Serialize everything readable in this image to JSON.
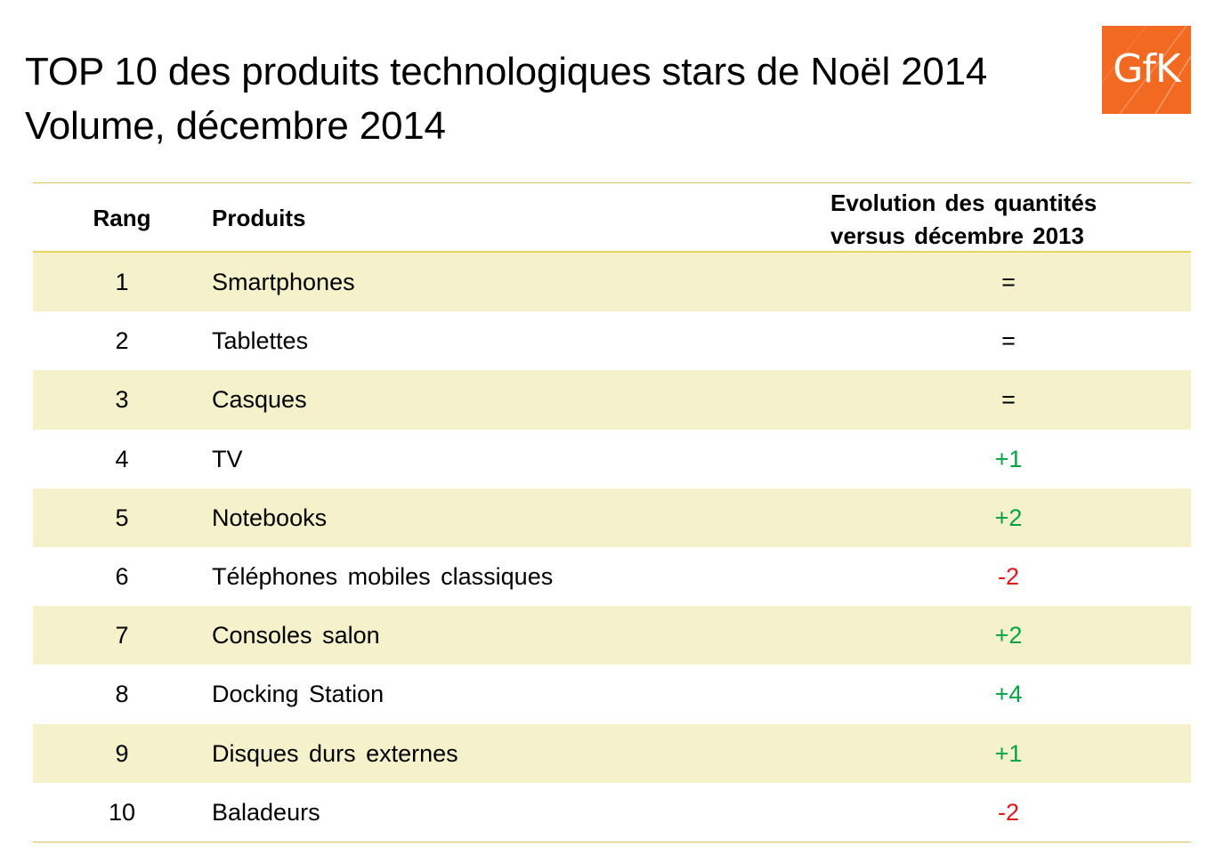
{
  "title": {
    "line1": "TOP 10 des produits technologiques stars de Noël 2014",
    "line2": "Volume, décembre 2014"
  },
  "logo": {
    "text": "GfK",
    "color": "#f26a21"
  },
  "table": {
    "headers": {
      "rang": "Rang",
      "produits": "Produits",
      "evolution_line1": "Evolution des quantités",
      "evolution_line2": "versus décembre 2013"
    },
    "rows": [
      {
        "rang": "1",
        "produit": "Smartphones",
        "evolution": "="
      },
      {
        "rang": "2",
        "produit": "Tablettes",
        "evolution": "="
      },
      {
        "rang": "3",
        "produit": "Casques",
        "evolution": "="
      },
      {
        "rang": "4",
        "produit": "TV",
        "evolution": "+1"
      },
      {
        "rang": "5",
        "produit": "Notebooks",
        "evolution": "+2"
      },
      {
        "rang": "6",
        "produit": "Téléphones mobiles classiques",
        "evolution": "-2"
      },
      {
        "rang": "7",
        "produit": "Consoles salon",
        "evolution": "+2"
      },
      {
        "rang": "8",
        "produit": "Docking Station",
        "evolution": "+4"
      },
      {
        "rang": "9",
        "produit": "Disques durs externes",
        "evolution": "+1"
      },
      {
        "rang": "10",
        "produit": "Baladeurs",
        "evolution": "-2"
      }
    ]
  },
  "colors": {
    "row_stripe": "#f4f1cb",
    "rule": "#d9c35a",
    "positive": "#00a443",
    "negative": "#e4141b",
    "neutral": "#000000"
  }
}
